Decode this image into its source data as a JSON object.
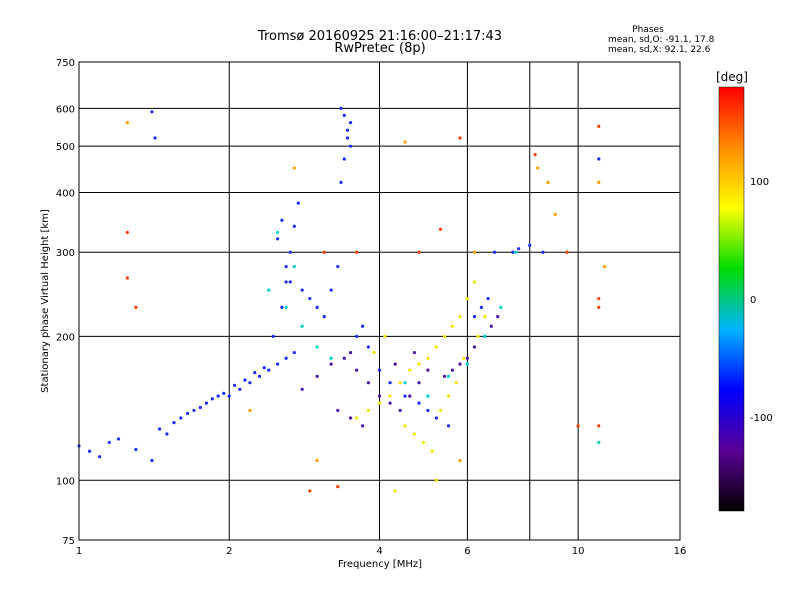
{
  "chart_data": {
    "type": "scatter",
    "title": "Tromsø 20160925 21:16:00–21:17:43",
    "subtitle": "RwPretec (8p)",
    "xlabel": "Frequency [MHz]",
    "ylabel": "Stationary phase Virtual Height [km]",
    "x_scale": "log",
    "y_scale": "log",
    "xlim": [
      1,
      16
    ],
    "ylim": [
      75,
      750
    ],
    "x_ticks": [
      1,
      2,
      4,
      6,
      10,
      16
    ],
    "y_ticks": [
      75,
      100,
      200,
      300,
      400,
      500,
      600,
      750
    ],
    "grid": true,
    "phases_box": {
      "heading": "Phases",
      "line1": "mean, sd,O: -91.1, 17.8",
      "line2": "mean, sd,X:  92.1, 22.6"
    },
    "colorbar": {
      "label": "[deg]",
      "range": [
        -180,
        180
      ],
      "ticks": [
        "100",
        "0",
        "-100"
      ],
      "colors": [
        "#000000",
        "#5a0096",
        "#0000ff",
        "#00b4ff",
        "#00dc00",
        "#ffff00",
        "#ff8c00",
        "#ff0000"
      ]
    },
    "series": [
      {
        "phase_deg": -100,
        "color": "#1a2cff",
        "x": [
          1.0,
          1.05,
          1.1,
          1.15,
          1.2,
          1.3,
          1.4,
          1.5,
          1.6,
          1.7,
          1.8,
          1.9,
          2.0,
          2.1,
          2.2,
          2.3,
          2.4,
          2.5,
          2.6,
          2.7,
          1.45,
          1.55,
          1.65,
          1.75,
          1.85,
          1.95,
          2.05,
          2.15,
          2.25,
          2.35,
          2.45,
          2.55,
          2.6,
          2.65,
          2.7,
          2.75,
          2.8,
          2.9,
          3.0,
          3.1,
          3.2,
          3.3,
          3.35,
          3.4,
          3.45,
          3.5,
          3.6,
          3.7,
          3.8,
          4.0,
          4.2,
          4.5,
          4.8,
          5.0,
          5.2,
          5.5,
          6.2,
          6.4,
          6.6,
          6.8,
          7.4,
          7.6,
          8.0,
          8.5,
          11.0,
          2.5,
          2.55,
          2.6,
          2.65,
          3.35,
          3.4,
          3.45,
          3.5,
          1.4,
          1.42
        ],
        "y": [
          118,
          115,
          112,
          120,
          122,
          116,
          110,
          125,
          135,
          140,
          145,
          150,
          150,
          155,
          160,
          165,
          170,
          175,
          180,
          185,
          128,
          132,
          138,
          142,
          148,
          152,
          158,
          162,
          168,
          172,
          200,
          230,
          260,
          300,
          340,
          380,
          250,
          240,
          230,
          220,
          250,
          280,
          420,
          470,
          520,
          560,
          200,
          210,
          190,
          170,
          160,
          150,
          145,
          140,
          135,
          130,
          220,
          230,
          240,
          300,
          300,
          305,
          310,
          300,
          470,
          320,
          350,
          280,
          260,
          600,
          580,
          540,
          500,
          590,
          520
        ]
      },
      {
        "phase_deg": -130,
        "color": "#4a16a6",
        "x": [
          2.8,
          3.0,
          3.2,
          3.4,
          3.5,
          3.6,
          3.8,
          4.0,
          4.2,
          4.4,
          4.6,
          4.8,
          5.0,
          5.4,
          5.6,
          5.8,
          6.0,
          6.2,
          6.5,
          6.7,
          6.9,
          3.3,
          3.5,
          3.7,
          4.3,
          4.7
        ],
        "y": [
          155,
          165,
          175,
          180,
          185,
          170,
          160,
          150,
          145,
          140,
          150,
          160,
          170,
          165,
          170,
          175,
          180,
          190,
          200,
          210,
          220,
          140,
          135,
          130,
          175,
          185
        ]
      },
      {
        "phase_deg": 100,
        "color": "#f2e600",
        "x": [
          3.6,
          3.8,
          4.0,
          4.2,
          4.4,
          4.6,
          4.8,
          5.0,
          5.2,
          5.4,
          5.6,
          5.8,
          6.0,
          6.2,
          4.5,
          4.7,
          4.9,
          5.1,
          5.3,
          5.5,
          5.7,
          5.9,
          6.3,
          6.5,
          4.1,
          3.9,
          5.2,
          4.3
        ],
        "y": [
          135,
          140,
          145,
          150,
          160,
          170,
          175,
          180,
          190,
          200,
          210,
          220,
          240,
          260,
          130,
          125,
          120,
          115,
          140,
          150,
          160,
          180,
          200,
          220,
          200,
          185,
          100,
          95
        ]
      },
      {
        "phase_deg": 0,
        "color": "#00d2c8",
        "x": [
          2.4,
          2.6,
          2.8,
          3.0,
          3.2,
          4.5,
          5.0,
          5.5,
          6.0,
          6.5,
          7.0,
          7.5,
          2.5,
          2.7,
          11.0
        ],
        "y": [
          250,
          230,
          210,
          190,
          180,
          160,
          150,
          165,
          175,
          200,
          230,
          300,
          330,
          280,
          120
        ]
      },
      {
        "phase_deg": 160,
        "color": "#ff3c00",
        "x": [
          1.25,
          1.25,
          1.3,
          2.9,
          3.3,
          5.3,
          5.8,
          8.2,
          9.5,
          10.0,
          11.0,
          11.0,
          11.0,
          11.0,
          3.1,
          3.6,
          4.8
        ],
        "y": [
          330,
          265,
          230,
          95,
          97,
          335,
          520,
          480,
          300,
          130,
          550,
          240,
          230,
          130,
          300,
          300,
          300
        ]
      },
      {
        "phase_deg": 120,
        "color": "#ffa000",
        "x": [
          1.25,
          2.7,
          4.5,
          5.8,
          8.3,
          8.7,
          9.0,
          11.0,
          11.3,
          2.2,
          3.0,
          6.2
        ],
        "y": [
          560,
          450,
          510,
          110,
          450,
          420,
          360,
          420,
          280,
          140,
          110,
          300
        ]
      }
    ]
  }
}
